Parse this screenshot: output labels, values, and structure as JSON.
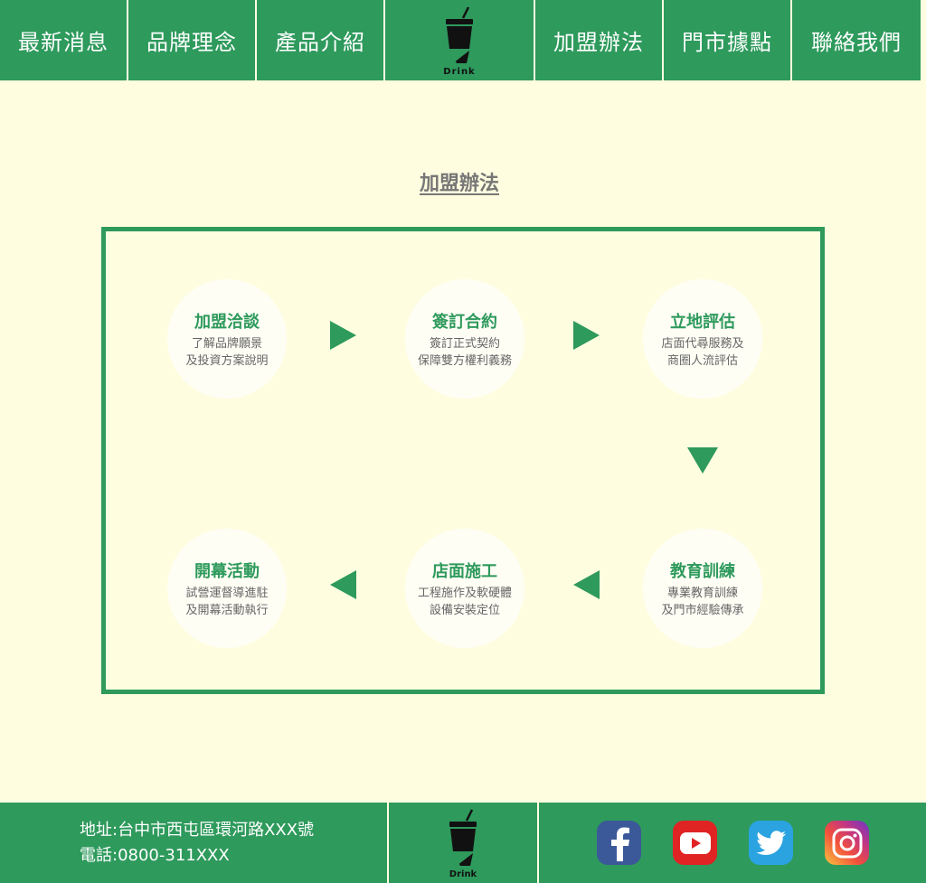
{
  "nav": {
    "items_left": [
      "最新消息",
      "品牌理念",
      "產品介紹"
    ],
    "items_right": [
      "加盟辦法",
      "門市據點",
      "聯絡我們"
    ],
    "logo_text": "Drink"
  },
  "page": {
    "title": "加盟辦法"
  },
  "steps": [
    {
      "title": "加盟洽談",
      "desc1": "了解品牌願景",
      "desc2": "及投資方案說明"
    },
    {
      "title": "簽訂合約",
      "desc1": "簽訂正式契約",
      "desc2": "保障雙方權利義務"
    },
    {
      "title": "立地評估",
      "desc1": "店面代尋服務及",
      "desc2": "商圈人流評估"
    },
    {
      "title": "教育訓練",
      "desc1": "專業教育訓練",
      "desc2": "及門市經驗傳承"
    },
    {
      "title": "店面施工",
      "desc1": "工程施作及軟硬體",
      "desc2": "設備安裝定位"
    },
    {
      "title": "開幕活動",
      "desc1": "試營運督導進駐",
      "desc2": "及開幕活動執行"
    }
  ],
  "footer": {
    "address": "地址:台中市西屯區環河路XXX號",
    "phone": "電話:0800-311XXX",
    "logo_text": "Drink",
    "social": [
      "facebook-icon",
      "youtube-icon",
      "twitter-icon",
      "instagram-icon"
    ]
  },
  "colors": {
    "brand_green": "#2e9a5c",
    "background": "#fffde0"
  }
}
